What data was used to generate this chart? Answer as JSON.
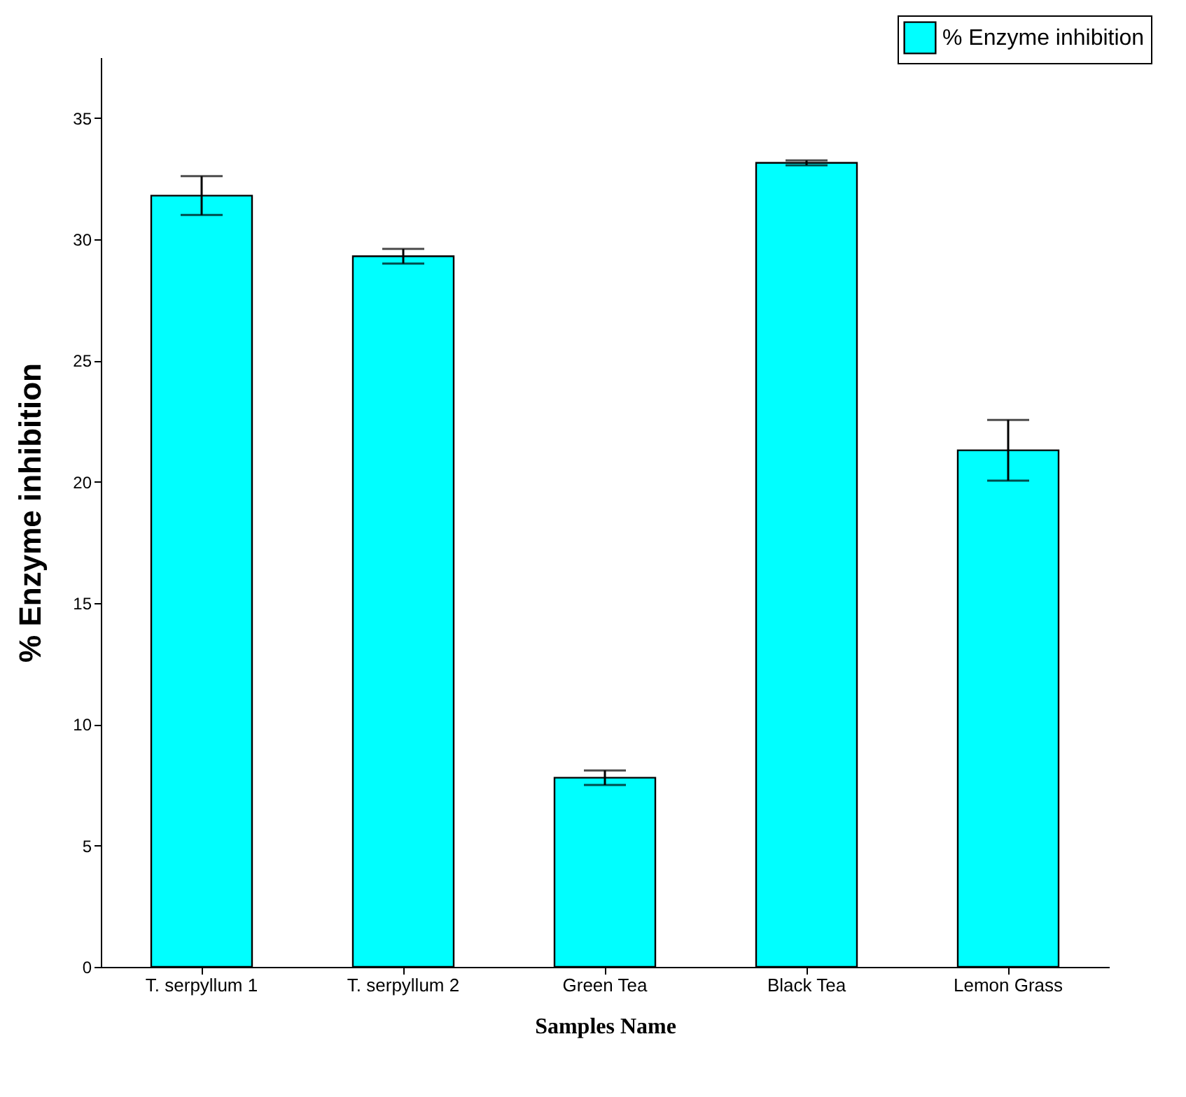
{
  "chart_data": {
    "type": "bar",
    "xlabel": "Samples Name",
    "ylabel": "% Enzyme inhibition",
    "categories": [
      "T. serpyllum 1",
      "T. serpyllum 2",
      "Green Tea",
      "Black Tea",
      "Lemon Grass"
    ],
    "series": [
      {
        "name": "% Enzyme inhibition",
        "color": "#00ffff",
        "values": [
          31.8,
          29.3,
          7.8,
          33.15,
          21.3
        ],
        "errors": [
          0.8,
          0.3,
          0.3,
          0.1,
          1.25
        ]
      }
    ],
    "ylim": [
      0,
      37.5
    ],
    "yticks": [
      0,
      5,
      10,
      15,
      20,
      25,
      30,
      35
    ],
    "legend": "top right",
    "grid": false
  }
}
